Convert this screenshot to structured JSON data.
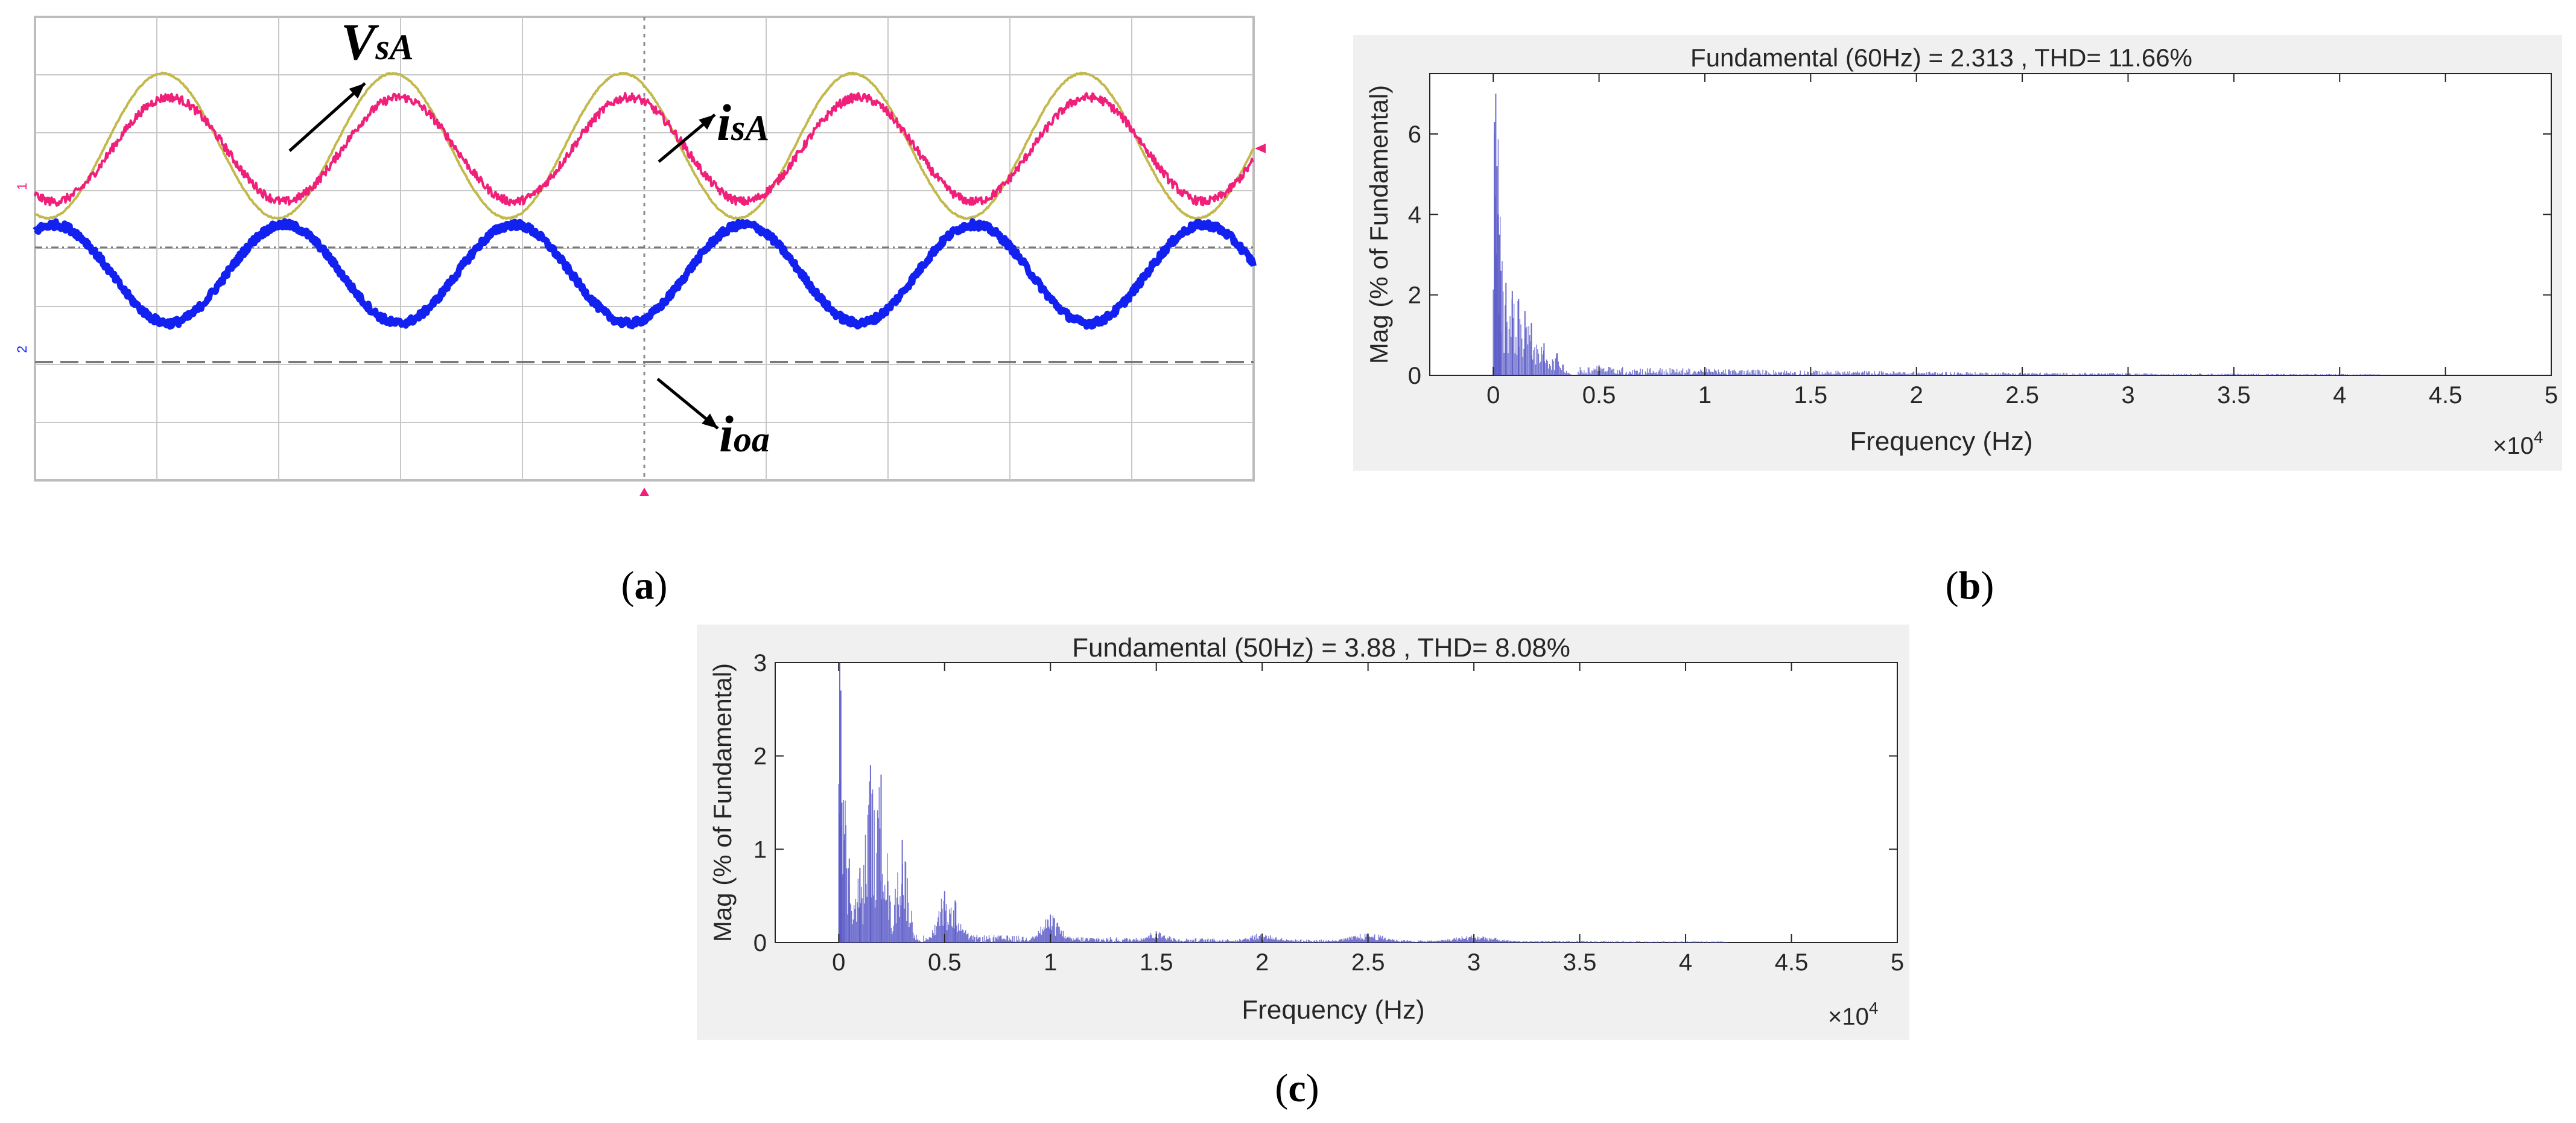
{
  "chart_data": [
    {
      "panel": "(a)",
      "type": "line",
      "grid": true,
      "x": {
        "min": 0,
        "max": 5,
        "divisions": 10
      },
      "series": [
        {
          "name": "VsA",
          "color": "#c2b94a",
          "amplitude": 1.0,
          "offset": 1.32,
          "cycles": 5.3,
          "phase_deg": 250,
          "noise": 0.01
        },
        {
          "name": "isA",
          "color": "#f01f79",
          "amplitude": 0.72,
          "offset": 1.27,
          "cycles": 5.3,
          "phase_deg": 240,
          "noise": 0.06
        },
        {
          "name": "ioa",
          "color": "#1221f0",
          "amplitude": 0.68,
          "offset": -0.45,
          "cycles": 5.3,
          "phase_deg": 60,
          "noise": 0.05
        }
      ],
      "annotations": [
        {
          "series": "VsA",
          "text_main": "V",
          "text_sub": "sA"
        },
        {
          "series": "isA",
          "text_main": "i",
          "text_sub": "sA"
        },
        {
          "series": "ioa",
          "text_main": "i",
          "text_sub": "oa"
        }
      ],
      "channel_markers": [
        "1",
        "2"
      ],
      "caption": "a"
    },
    {
      "panel": "(b)",
      "type": "bar",
      "title": "Fundamental (60Hz) = 2.313 , THD= 11.66%",
      "xlabel": "Frequency (Hz)",
      "ylabel": "Mag (% of Fundamental)",
      "x_multiplier": "×10",
      "x_multiplier_exp": "4",
      "xlim": [
        -0.3,
        5
      ],
      "ylim": [
        0,
        7.5
      ],
      "xticks": [
        "0",
        "0.5",
        "1",
        "1.5",
        "2",
        "2.5",
        "3",
        "3.5",
        "4",
        "4.5",
        "5"
      ],
      "yticks": [
        "0",
        "2",
        "4",
        "6"
      ],
      "bar_color": "#5a5ac8",
      "spectrum_peaks_x1e4": [
        0.006,
        0.012,
        0.018,
        0.024,
        0.03,
        0.036,
        0.06,
        0.09,
        0.12,
        0.15,
        0.18,
        0.24,
        0.3,
        0.5,
        1.0
      ],
      "spectrum_peaks_mag": [
        6.3,
        7.0,
        5.2,
        4.0,
        3.5,
        2.6,
        2.3,
        2.1,
        1.9,
        1.6,
        1.3,
        0.8,
        0.55,
        0.25,
        0.12
      ],
      "caption": "b"
    },
    {
      "panel": "(c)",
      "type": "bar",
      "title": "Fundamental (50Hz) = 3.88 , THD= 8.08%",
      "xlabel": "Frequency (Hz)",
      "ylabel": "Mag (% of Fundamental)",
      "x_multiplier": "×10",
      "x_multiplier_exp": "4",
      "xlim": [
        -0.3,
        5
      ],
      "ylim": [
        0,
        3
      ],
      "xticks": [
        "0",
        "0.5",
        "1",
        "1.5",
        "2",
        "2.5",
        "3",
        "3.5",
        "4",
        "4.5",
        "5"
      ],
      "yticks": [
        "0",
        "1",
        "2",
        "3"
      ],
      "bar_color": "#5a5ac8",
      "spectrum_peaks_x1e4": [
        0.005,
        0.01,
        0.015,
        0.025,
        0.05,
        0.1,
        0.15,
        0.2,
        0.3,
        0.5,
        0.55,
        1.0,
        1.5,
        2.0,
        2.5,
        3.0
      ],
      "spectrum_peaks_mag": [
        3.0,
        2.7,
        1.5,
        1.1,
        0.9,
        0.8,
        1.9,
        1.8,
        1.1,
        0.55,
        0.45,
        0.3,
        0.12,
        0.1,
        0.1,
        0.08
      ],
      "caption": "c"
    }
  ]
}
